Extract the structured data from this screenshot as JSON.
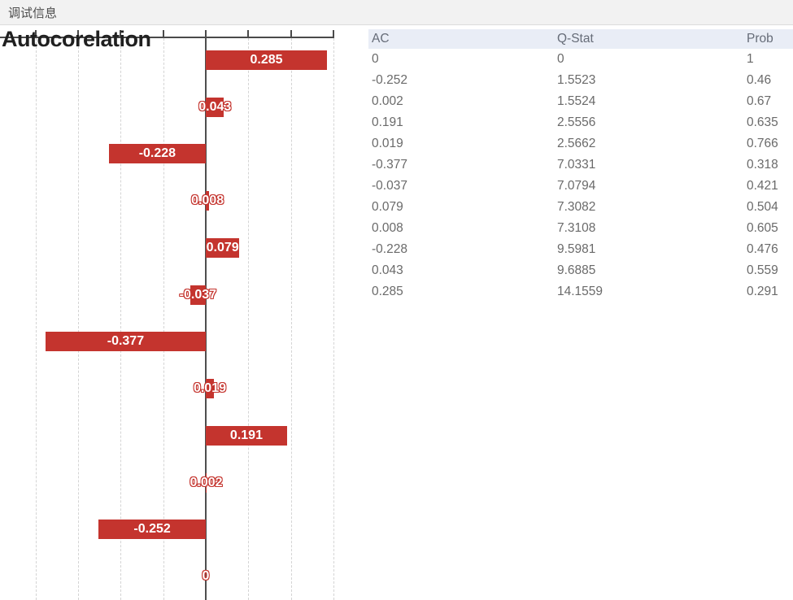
{
  "topbar": {
    "title": "调试信息"
  },
  "chart": {
    "title": "Autocorelation"
  },
  "chart_data": {
    "type": "bar",
    "orientation": "horizontal",
    "title": "Autocorelation",
    "bars_top_to_bottom": [
      {
        "value": 0.285,
        "label": "0.285"
      },
      {
        "value": 0.043,
        "label": "0.043"
      },
      {
        "value": -0.228,
        "label": "-0.228"
      },
      {
        "value": 0.008,
        "label": "0.008"
      },
      {
        "value": 0.079,
        "label": "0.079"
      },
      {
        "value": -0.037,
        "label": "-0.037"
      },
      {
        "value": -0.377,
        "label": "-0.377"
      },
      {
        "value": 0.019,
        "label": "0.019"
      },
      {
        "value": 0.191,
        "label": "0.191"
      },
      {
        "value": 0.002,
        "label": "0.002"
      },
      {
        "value": -0.252,
        "label": "-0.252"
      },
      {
        "value": 0,
        "label": "0"
      }
    ],
    "xlim": [
      -0.4838,
      0.3021
    ],
    "grid_values": [
      -0.4,
      -0.3,
      -0.2,
      -0.1,
      0,
      0.1,
      0.2,
      0.3
    ],
    "grid": true,
    "zero_line": 0,
    "legend": "none"
  },
  "table": {
    "columns": [
      "AC",
      "Q-Stat",
      "Prob"
    ],
    "rows": [
      [
        "0",
        "0",
        "1"
      ],
      [
        "-0.252",
        "1.5523",
        "0.46"
      ],
      [
        "0.002",
        "1.5524",
        "0.67"
      ],
      [
        "0.191",
        "2.5556",
        "0.635"
      ],
      [
        "0.019",
        "2.5662",
        "0.766"
      ],
      [
        "-0.377",
        "7.0331",
        "0.318"
      ],
      [
        "-0.037",
        "7.0794",
        "0.421"
      ],
      [
        "0.079",
        "7.3082",
        "0.504"
      ],
      [
        "0.008",
        "7.3108",
        "0.605"
      ],
      [
        "-0.228",
        "9.5981",
        "0.476"
      ],
      [
        "0.043",
        "9.6885",
        "0.559"
      ],
      [
        "0.285",
        "14.1559",
        "0.291"
      ]
    ]
  },
  "colors": {
    "bar": "#c4342e",
    "bar_label_outline": "#c4342e",
    "axis": "#4a4a4a",
    "grid": "#d4d4d4",
    "table_header_bg": "#e9edf6",
    "table_text": "#6a6a6a",
    "topbar_bg": "#f2f2f2",
    "title_text": "#202020"
  }
}
